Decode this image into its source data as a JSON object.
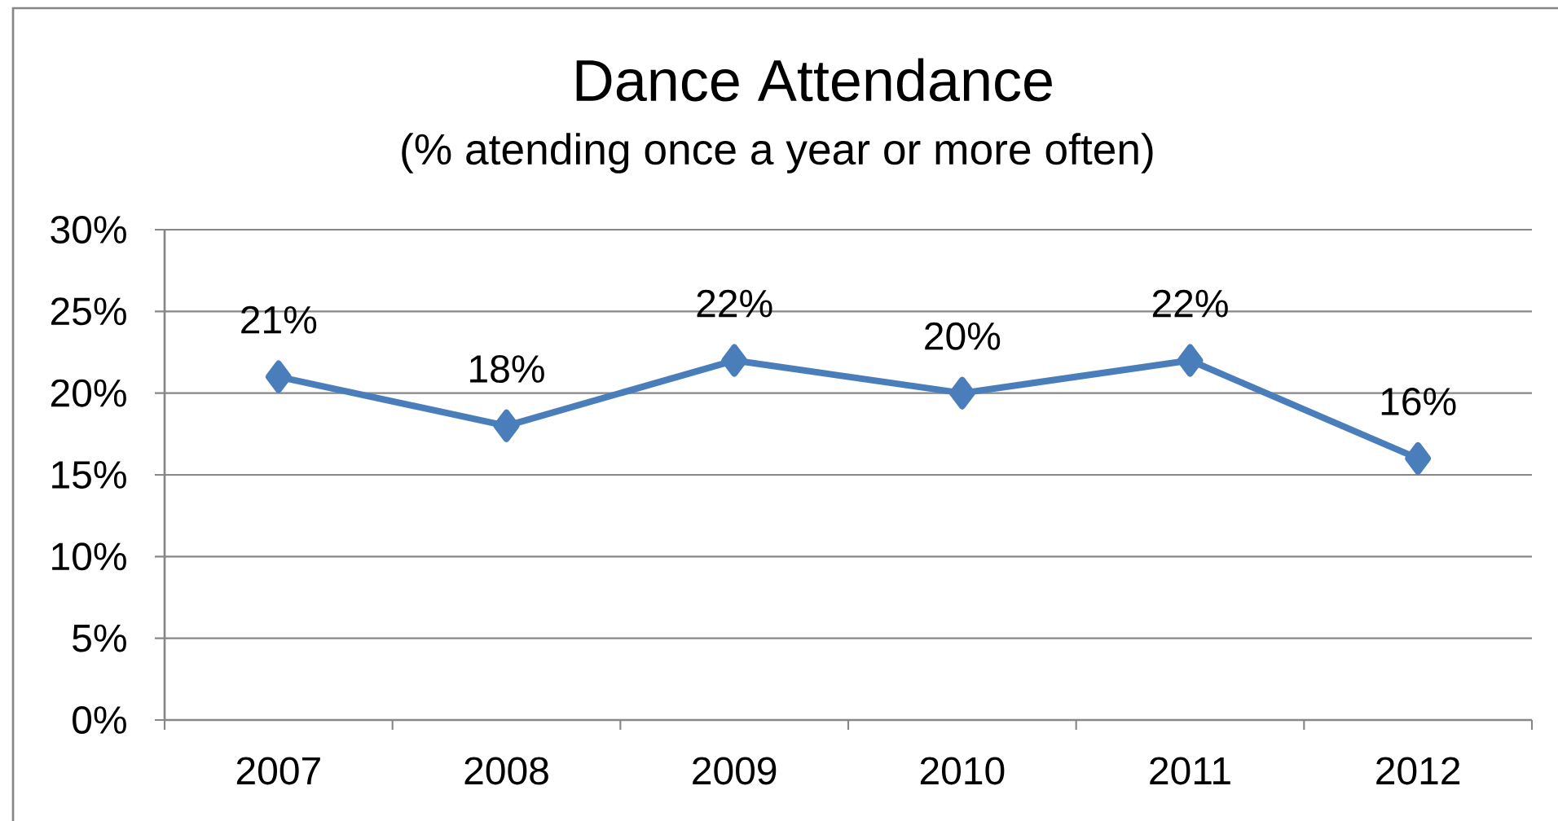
{
  "chart_data": {
    "type": "line",
    "title": "Dance Attendance",
    "subtitle": "(% atending once a year or more often)",
    "categories": [
      "2007",
      "2008",
      "2009",
      "2010",
      "2011",
      "2012"
    ],
    "values": [
      21,
      18,
      22,
      20,
      22,
      16
    ],
    "color": "#4a7ebb",
    "value_labels": [
      "21%",
      "18%",
      "22%",
      "20%",
      "22%",
      "16%"
    ],
    "ylim": [
      0,
      30
    ],
    "yticks": [
      {
        "value": 0,
        "label": "0%"
      },
      {
        "value": 5,
        "label": "5%"
      },
      {
        "value": 10,
        "label": "10%"
      },
      {
        "value": 15,
        "label": "15%"
      },
      {
        "value": 20,
        "label": "20%"
      },
      {
        "value": 25,
        "label": "25%"
      },
      {
        "value": 30,
        "label": "30%"
      }
    ],
    "grid": "y",
    "marker": "diamond",
    "line_style": "solid"
  }
}
